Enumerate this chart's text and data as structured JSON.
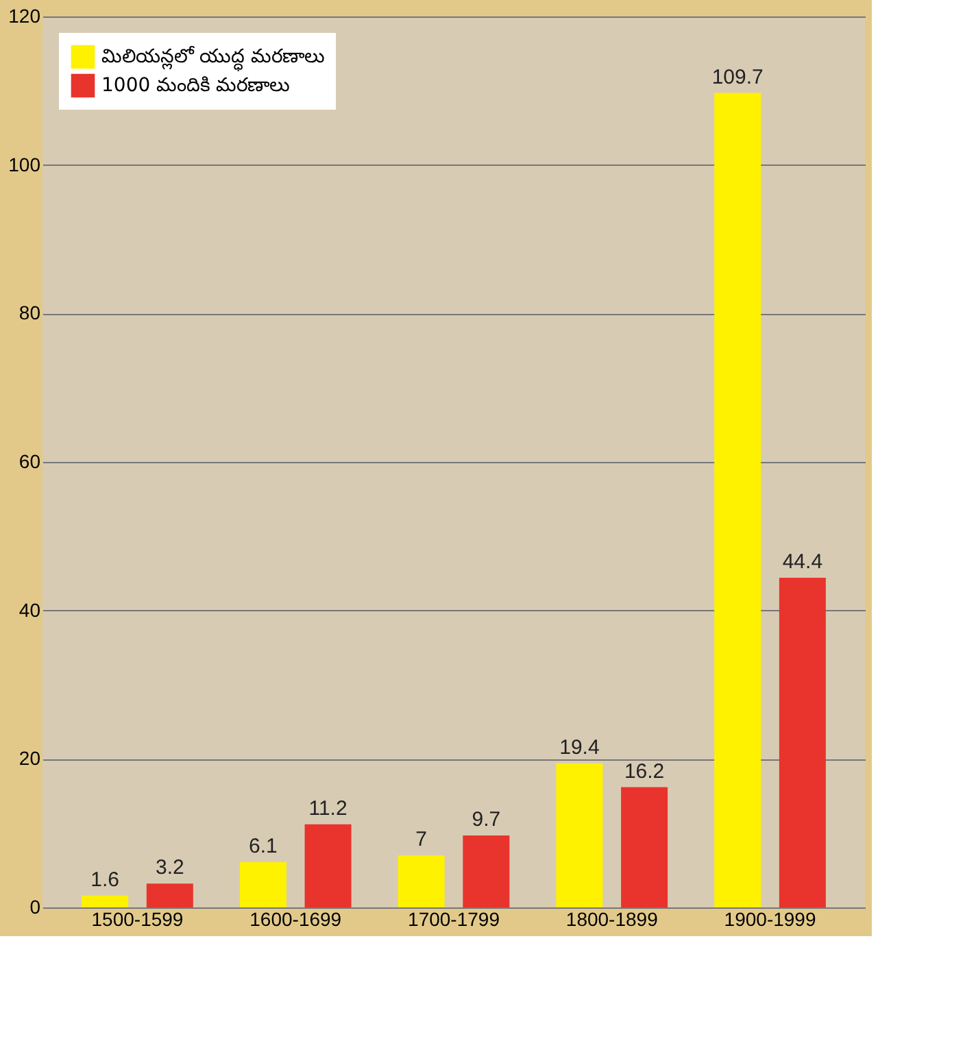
{
  "chart_data": {
    "type": "bar",
    "categories": [
      "1500-1599",
      "1600-1699",
      "1700-1799",
      "1800-1899",
      "1900-1999"
    ],
    "series": [
      {
        "name": "మిలియన్లలో యుద్ధ మరణాలు",
        "color": "#fff200",
        "values": [
          1.6,
          6.1,
          7,
          19.4,
          109.7
        ]
      },
      {
        "name": "1000 మందికి మరణాలు",
        "color": "#e8342c",
        "values": [
          3.2,
          11.2,
          9.7,
          16.2,
          44.4
        ]
      }
    ],
    "ylim": [
      0,
      120
    ],
    "yticks": [
      0,
      20,
      40,
      60,
      80,
      100,
      120
    ],
    "grid": "y",
    "legend": "top left",
    "data_labels": true
  }
}
